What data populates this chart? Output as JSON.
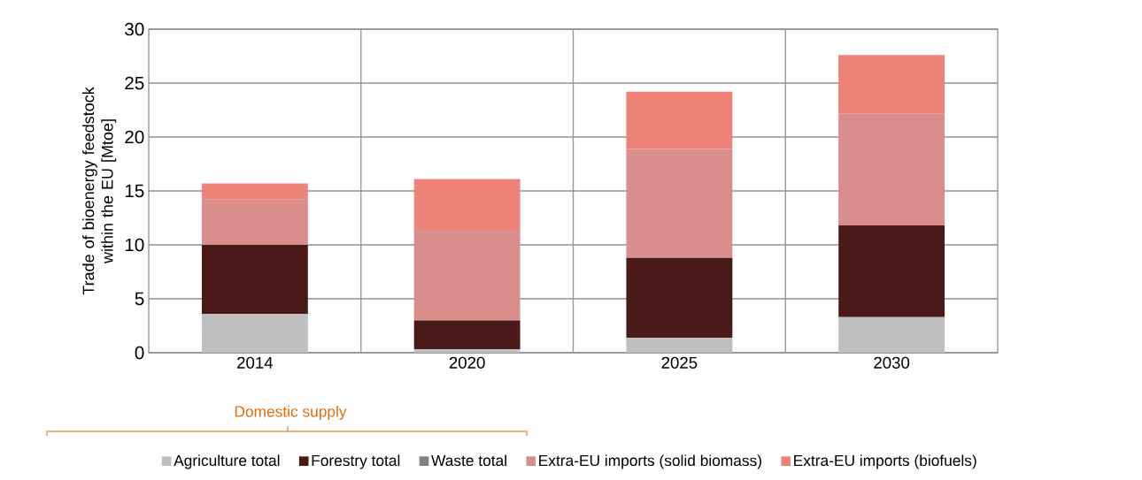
{
  "chart_data": {
    "type": "bar",
    "stacked": true,
    "ylabel": "Trade of bioenergy feedstock within the EU [Mtoe]",
    "categories": [
      "2014",
      "2020",
      "2025",
      "2030"
    ],
    "series": [
      {
        "name": "Agriculture total",
        "color": "#bfbfbf",
        "values": [
          3.6,
          0.3,
          1.4,
          3.3
        ]
      },
      {
        "name": "Forestry total",
        "color": "#4a1a19",
        "values": [
          6.4,
          2.7,
          7.4,
          8.5
        ]
      },
      {
        "name": "Waste total",
        "color": "#808080",
        "values": [
          0,
          0,
          0,
          0
        ]
      },
      {
        "name": "Extra-EU imports (solid biomass)",
        "color": "#d98e8c",
        "values": [
          4.2,
          8.4,
          10.1,
          10.4
        ]
      },
      {
        "name": "Extra-EU imports (biofuels)",
        "color": "#ee8279",
        "values": [
          1.5,
          4.7,
          5.3,
          5.4
        ]
      }
    ],
    "ylim": [
      0,
      30
    ],
    "yticks": [
      0,
      5,
      10,
      15,
      20,
      25,
      30
    ],
    "grid": true,
    "legend": "bottom",
    "annotations": [
      "Domestic supply"
    ]
  }
}
